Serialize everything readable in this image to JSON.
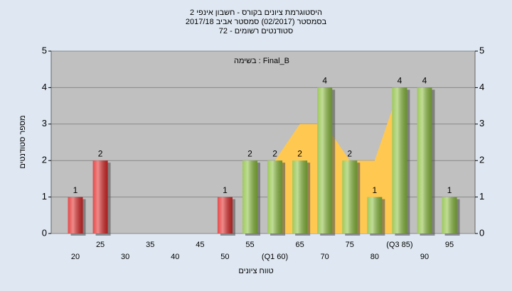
{
  "chart_data": {
    "type": "bar",
    "title": [
      "היסטוגרמת ציונים בקורס - חשבון אינפי 2",
      "בסמסטר  (02/2017)  סמסטר אביב 2017/18",
      "סטודנטים רשומים - 72"
    ],
    "annotation": "בשימה : Final_B",
    "y_label": "מספר סטודנטים",
    "x_label": "טווח ציונים",
    "categories": [
      "20",
      "25",
      "30",
      "35",
      "40",
      "45",
      "50",
      "55",
      "(Q1 60)",
      "65",
      "70",
      "75",
      "80",
      "(Q3 85)",
      "90",
      "95"
    ],
    "values": [
      1,
      2,
      0,
      0,
      0,
      0,
      1,
      2,
      2,
      2,
      4,
      2,
      1,
      4,
      4,
      1
    ],
    "bar_colors": [
      "#e02a2a",
      "#e02a2a",
      "#e02a2a",
      "#e02a2a",
      "#e02a2a",
      "#e02a2a",
      "#e02a2a",
      "#8dc040",
      "#8dc040",
      "#8dc040",
      "#8dc040",
      "#8dc040",
      "#8dc040",
      "#8dc040",
      "#8dc040",
      "#8dc040"
    ],
    "area_values": [
      null,
      null,
      null,
      null,
      null,
      null,
      null,
      null,
      2,
      3,
      3,
      2,
      2,
      4,
      null,
      null
    ],
    "area_color": "#ffc850",
    "ylim": [
      0,
      5
    ],
    "yticks": [
      0,
      1,
      2,
      3,
      4,
      5
    ],
    "y2lim": [
      0,
      5
    ],
    "y2ticks": [
      0,
      1,
      2,
      3,
      4,
      5
    ],
    "grid": true
  }
}
